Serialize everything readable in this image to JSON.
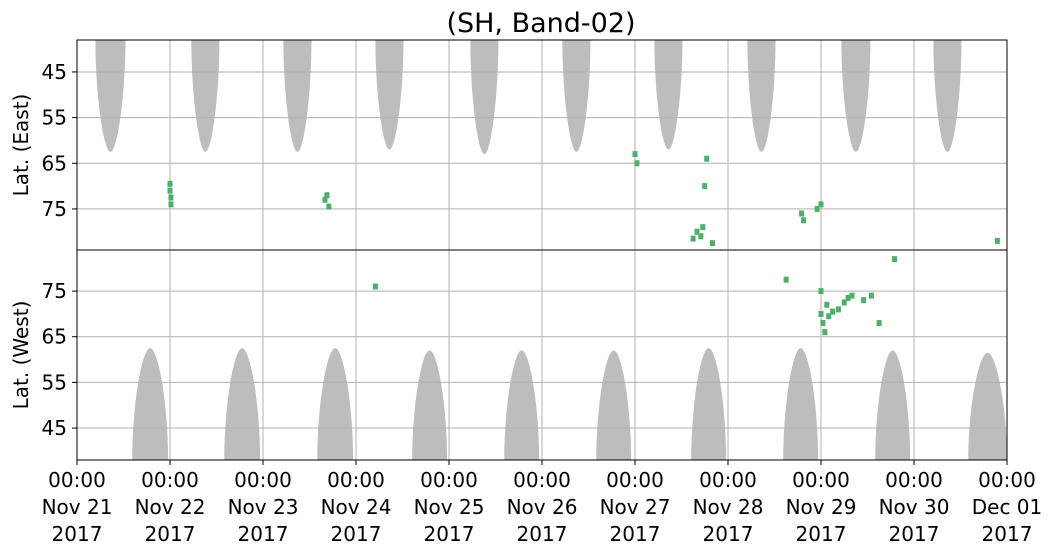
{
  "chart_data": {
    "type": "heatmap",
    "title": "(SH, Band-02)",
    "x_start": "2017-11-21 00:00",
    "x_end": "2017-12-01 00:00",
    "x_ticks": [
      {
        "time": "00:00",
        "date": "Nov 21",
        "year": "2017"
      },
      {
        "time": "00:00",
        "date": "Nov 22",
        "year": "2017"
      },
      {
        "time": "00:00",
        "date": "Nov 23",
        "year": "2017"
      },
      {
        "time": "00:00",
        "date": "Nov 24",
        "year": "2017"
      },
      {
        "time": "00:00",
        "date": "Nov 25",
        "year": "2017"
      },
      {
        "time": "00:00",
        "date": "Nov 26",
        "year": "2017"
      },
      {
        "time": "00:00",
        "date": "Nov 27",
        "year": "2017"
      },
      {
        "time": "00:00",
        "date": "Nov 28",
        "year": "2017"
      },
      {
        "time": "00:00",
        "date": "Nov 29",
        "year": "2017"
      },
      {
        "time": "00:00",
        "date": "Nov 30",
        "year": "2017"
      },
      {
        "time": "00:00",
        "date": "Dec 01",
        "year": "2017"
      }
    ],
    "panels": [
      {
        "ylabel": "Lat. (East)",
        "yticks": [
          "45",
          "55",
          "65",
          "75"
        ],
        "ylim": [
          84,
          38
        ],
        "no_data": [
          {
            "start": "2017-11-21 04:45",
            "end": "2017-11-21 12:30",
            "lat_max": 62.5
          },
          {
            "start": "2017-11-22 05:30",
            "end": "2017-11-22 12:45",
            "lat_max": 62.5
          },
          {
            "start": "2017-11-23 05:15",
            "end": "2017-11-23 12:30",
            "lat_max": 62.5
          },
          {
            "start": "2017-11-24 05:00",
            "end": "2017-11-24 12:15",
            "lat_max": 62.0
          },
          {
            "start": "2017-11-25 05:30",
            "end": "2017-11-25 12:45",
            "lat_max": 63.0
          },
          {
            "start": "2017-11-26 05:15",
            "end": "2017-11-26 12:30",
            "lat_max": 62.5
          },
          {
            "start": "2017-11-27 05:00",
            "end": "2017-11-27 12:15",
            "lat_max": 62.0
          },
          {
            "start": "2017-11-28 05:00",
            "end": "2017-11-28 12:15",
            "lat_max": 62.5
          },
          {
            "start": "2017-11-29 05:15",
            "end": "2017-11-29 12:45",
            "lat_max": 62.5
          },
          {
            "start": "2017-11-30 05:00",
            "end": "2017-11-30 12:15",
            "lat_max": 62.5
          }
        ],
        "events": [
          {
            "t": "2017-11-22 00:00",
            "lat": 69.5
          },
          {
            "t": "2017-11-22 00:00",
            "lat": 71.0
          },
          {
            "t": "2017-11-22 00:15",
            "lat": 72.5
          },
          {
            "t": "2017-11-22 00:15",
            "lat": 74.0
          },
          {
            "t": "2017-11-23 16:00",
            "lat": 73.0
          },
          {
            "t": "2017-11-23 16:30",
            "lat": 72.0
          },
          {
            "t": "2017-11-23 17:00",
            "lat": 74.5
          },
          {
            "t": "2017-11-27 00:00",
            "lat": 63.0
          },
          {
            "t": "2017-11-27 00:30",
            "lat": 65.0
          },
          {
            "t": "2017-11-27 15:00",
            "lat": 81.5
          },
          {
            "t": "2017-11-27 16:00",
            "lat": 80.0
          },
          {
            "t": "2017-11-27 17:00",
            "lat": 81.0
          },
          {
            "t": "2017-11-27 17:30",
            "lat": 79.0
          },
          {
            "t": "2017-11-27 20:00",
            "lat": 82.5
          },
          {
            "t": "2017-11-27 18:00",
            "lat": 70.0
          },
          {
            "t": "2017-11-27 18:30",
            "lat": 64.0
          },
          {
            "t": "2017-11-28 19:00",
            "lat": 76.0
          },
          {
            "t": "2017-11-28 19:30",
            "lat": 77.5
          },
          {
            "t": "2017-11-29 00:00",
            "lat": 74.0
          },
          {
            "t": "2017-11-28 23:00",
            "lat": 75.0
          },
          {
            "t": "2017-11-30 21:30",
            "lat": 82.0
          }
        ]
      },
      {
        "ylabel": "Lat. (West)",
        "yticks": [
          "75",
          "65",
          "55",
          "45"
        ],
        "ylim": [
          84,
          38
        ],
        "no_data": [
          {
            "start": "2017-11-21 14:15",
            "end": "2017-11-21 23:30",
            "lat_max": 62.5
          },
          {
            "start": "2017-11-22 14:00",
            "end": "2017-11-22 23:15",
            "lat_max": 62.5
          },
          {
            "start": "2017-11-23 14:00",
            "end": "2017-11-23 23:15",
            "lat_max": 62.5
          },
          {
            "start": "2017-11-24 14:30",
            "end": "2017-11-24 23:30",
            "lat_max": 62.0
          },
          {
            "start": "2017-11-25 14:15",
            "end": "2017-11-25 23:15",
            "lat_max": 62.0
          },
          {
            "start": "2017-11-26 14:00",
            "end": "2017-11-26 23:00",
            "lat_max": 62.0
          },
          {
            "start": "2017-11-27 14:30",
            "end": "2017-11-27 23:30",
            "lat_max": 62.5
          },
          {
            "start": "2017-11-28 14:15",
            "end": "2017-11-28 23:15",
            "lat_max": 62.5
          },
          {
            "start": "2017-11-29 14:00",
            "end": "2017-11-29 23:00",
            "lat_max": 62.0
          },
          {
            "start": "2017-11-30 14:00",
            "end": "2017-11-30 23:59",
            "lat_max": 61.5
          }
        ],
        "events": [
          {
            "t": "2017-11-24 05:00",
            "lat": 76.0
          },
          {
            "t": "2017-11-29 00:00",
            "lat": 70.0
          },
          {
            "t": "2017-11-29 00:30",
            "lat": 68.0
          },
          {
            "t": "2017-11-29 01:00",
            "lat": 66.0
          },
          {
            "t": "2017-11-29 02:00",
            "lat": 69.5
          },
          {
            "t": "2017-11-29 01:30",
            "lat": 72.0
          },
          {
            "t": "2017-11-29 03:00",
            "lat": 70.5
          },
          {
            "t": "2017-11-29 04:30",
            "lat": 71.0
          },
          {
            "t": "2017-11-29 06:00",
            "lat": 72.5
          },
          {
            "t": "2017-11-29 07:00",
            "lat": 73.5
          },
          {
            "t": "2017-11-29 08:00",
            "lat": 74.0
          },
          {
            "t": "2017-11-29 11:00",
            "lat": 73.0
          },
          {
            "t": "2017-11-29 13:00",
            "lat": 74.0
          },
          {
            "t": "2017-11-29 15:00",
            "lat": 68.0
          },
          {
            "t": "2017-11-29 00:00",
            "lat": 75.0
          },
          {
            "t": "2017-11-29 19:00",
            "lat": 82.0
          },
          {
            "t": "2017-11-28 15:00",
            "lat": 77.5
          }
        ]
      }
    ],
    "grid": true,
    "colors": {
      "no_data": "#bdbdbd",
      "event": "#4caf6a",
      "grid": "#b0b0b0",
      "axis": "#000000"
    }
  }
}
